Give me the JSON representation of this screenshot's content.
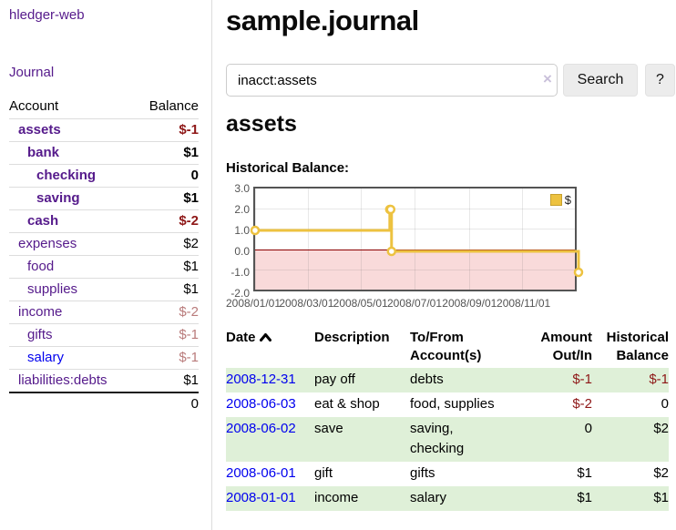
{
  "app": {
    "title": "hledger-web"
  },
  "sidebar": {
    "nav": {
      "journal_label": "Journal"
    },
    "accounts_header": {
      "account": "Account",
      "balance": "Balance"
    },
    "accounts": [
      {
        "name": "assets",
        "balance": "$-1"
      },
      {
        "name": "bank",
        "balance": "$1"
      },
      {
        "name": "checking",
        "balance": "0"
      },
      {
        "name": "saving",
        "balance": "$1"
      },
      {
        "name": "cash",
        "balance": "$-2"
      },
      {
        "name": "expenses",
        "balance": "$2"
      },
      {
        "name": "food",
        "balance": "$1"
      },
      {
        "name": "supplies",
        "balance": "$1"
      },
      {
        "name": "income",
        "balance": "$-2"
      },
      {
        "name": "gifts",
        "balance": "$-1"
      },
      {
        "name": "salary",
        "balance": "$-1"
      },
      {
        "name": "liabilities:debts",
        "balance": "$1"
      }
    ],
    "total": "0"
  },
  "header": {
    "title": "sample.journal"
  },
  "search": {
    "query": "inacct:assets",
    "clear_icon": "×",
    "search_label": "Search",
    "help_label": "?"
  },
  "account_page": {
    "heading": "assets",
    "chart_label": "Historical Balance:"
  },
  "chart_data": {
    "type": "line",
    "title": "Historical Balance",
    "step": true,
    "series": [
      {
        "name": "$",
        "color": "#EDC240",
        "points": [
          [
            "2008-01-01",
            1
          ],
          [
            "2008-06-01",
            2
          ],
          [
            "2008-06-02",
            2
          ],
          [
            "2008-06-03",
            0
          ],
          [
            "2008-12-31",
            -1
          ]
        ]
      }
    ],
    "xlim": [
      "2008-01-01",
      "2008-12-31"
    ],
    "ylim": [
      -2,
      3
    ],
    "yticks": [
      "3.0",
      "2.0",
      "1.0",
      "0.0",
      "-1.0",
      "-2.0"
    ],
    "xticks": [
      "2008/01/01",
      "2008/03/01",
      "2008/05/01",
      "2008/07/01",
      "2008/09/01",
      "2008/11/01"
    ],
    "legend_position": "top-right",
    "grid": true,
    "negative_region": {
      "from": 0,
      "to": -2,
      "color": "#F9DADA"
    },
    "zero_line_color": "#8B0000"
  },
  "register": {
    "headers": {
      "date": "Date",
      "sort_icon": "chevron-up",
      "description": "Description",
      "to_from": "To/From Account(s)",
      "amount": "Amount Out/In",
      "historical": "Historical Balance"
    },
    "rows": [
      {
        "date": "2008-12-31",
        "description": "pay off",
        "to_from": "debts",
        "amount": "$-1",
        "historical": "$-1"
      },
      {
        "date": "2008-06-03",
        "description": "eat & shop",
        "to_from": "food, supplies",
        "amount": "$-2",
        "historical": "0"
      },
      {
        "date": "2008-06-02",
        "description": "save",
        "to_from": "saving, checking",
        "amount": "0",
        "historical": "$2"
      },
      {
        "date": "2008-06-01",
        "description": "gift",
        "to_from": "gifts",
        "amount": "$1",
        "historical": "$2"
      },
      {
        "date": "2008-01-01",
        "description": "income",
        "to_from": "salary",
        "amount": "$1",
        "historical": "$1"
      }
    ]
  }
}
